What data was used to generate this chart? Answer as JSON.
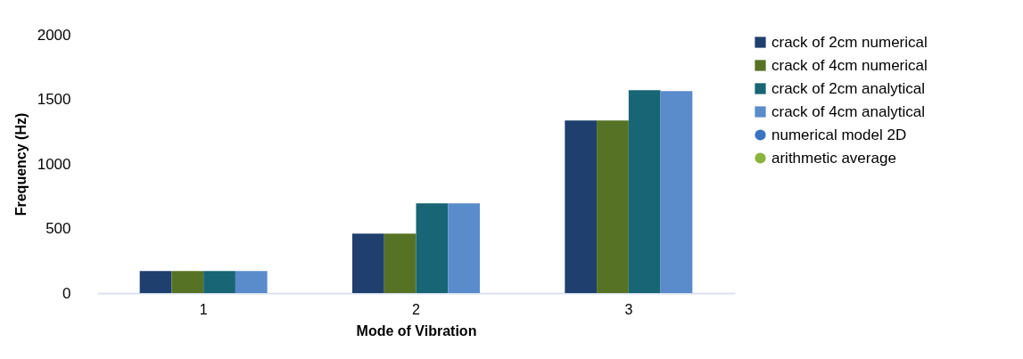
{
  "chart_data": {
    "type": "bar",
    "xlabel": "Mode of Vibration",
    "ylabel": "Frequency (Hz)",
    "categories": [
      "1",
      "2",
      "3"
    ],
    "series": [
      {
        "name": "crack of 2cm numerical",
        "color": "#1f3f6e",
        "values": [
          170,
          460,
          1336
        ]
      },
      {
        "name": "crack of 4cm numerical",
        "color": "#567325",
        "values": [
          170,
          460,
          1336
        ]
      },
      {
        "name": "crack of 2cm analytical",
        "color": "#176575",
        "values": [
          170,
          695,
          1570
        ]
      },
      {
        "name": "crack of 4cm analytical",
        "color": "#5a8ccc",
        "values": [
          170,
          695,
          1563
        ]
      },
      {
        "name": "numerical model 2D",
        "type": "scatter",
        "color": "#3a73c0",
        "values": [
          null,
          null,
          null
        ]
      },
      {
        "name": "arithmetic average",
        "type": "scatter",
        "color": "#8cb43c",
        "values": [
          null,
          null,
          null
        ]
      }
    ],
    "ylim": [
      0,
      2000
    ],
    "yticks": [
      0,
      500,
      1000,
      1500,
      2000
    ],
    "grid": false,
    "legend": "right",
    "marker": "circle"
  }
}
